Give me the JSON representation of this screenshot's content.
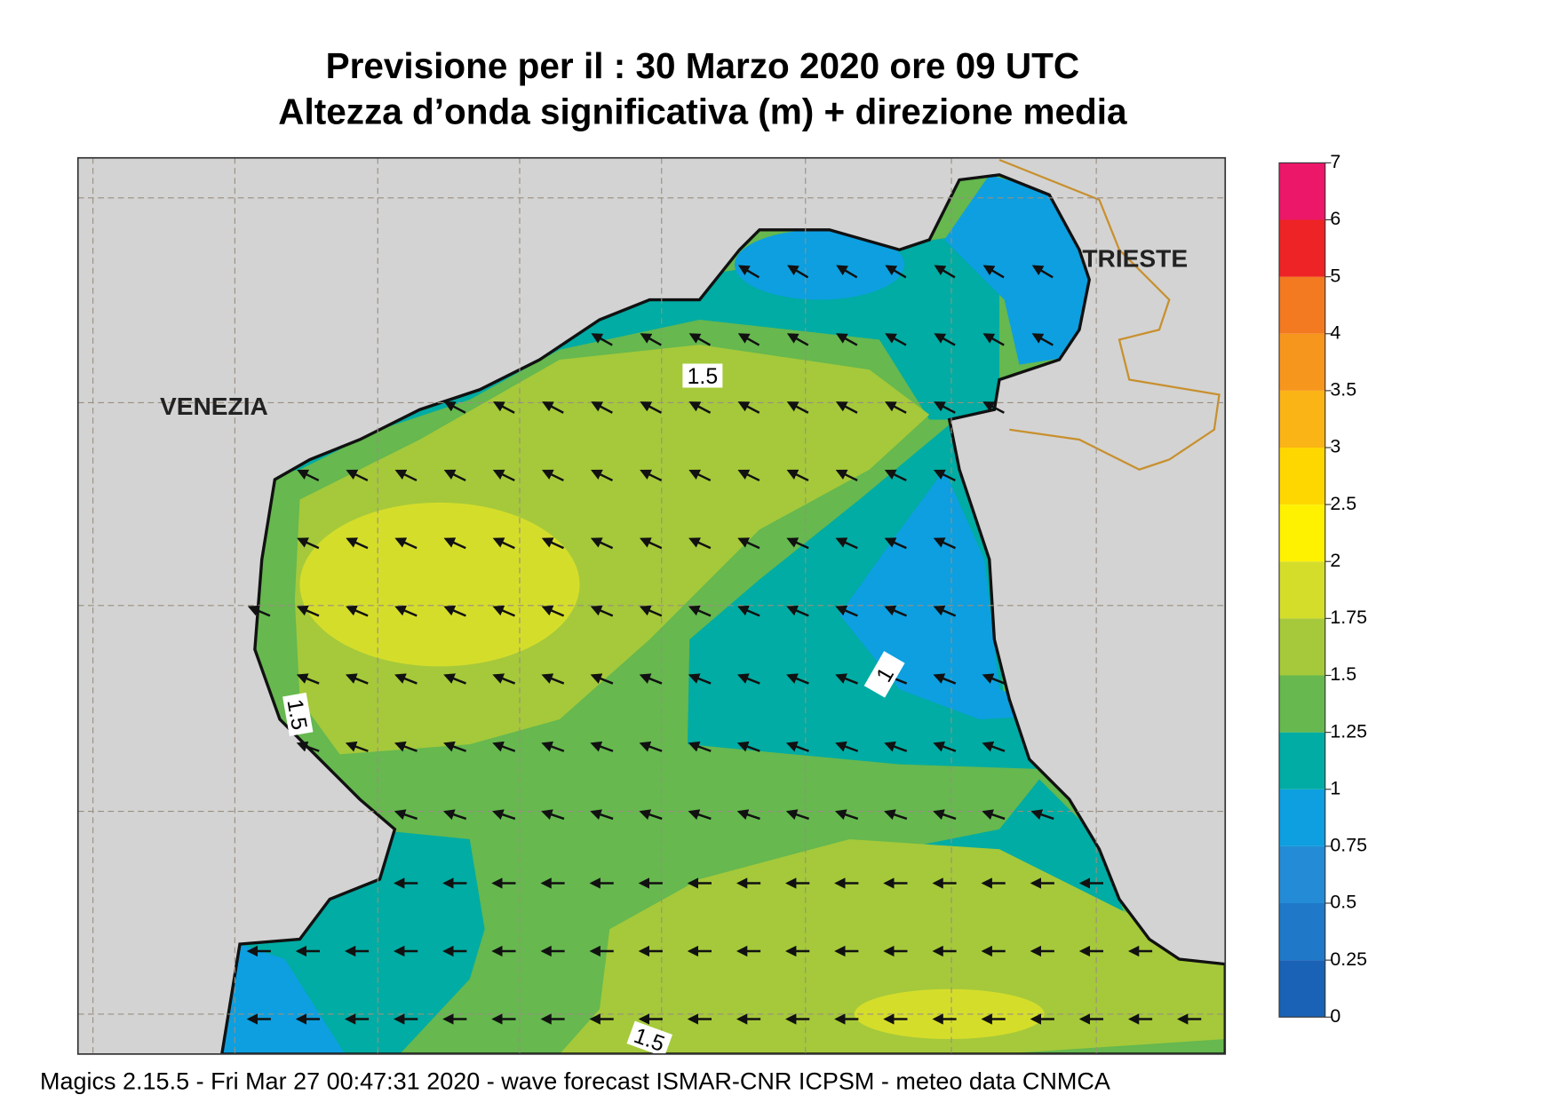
{
  "header": {
    "title": "Previsione per il  :  30   Marzo   2020   ore 09 UTC",
    "subtitle": "Altezza d’onda significativa (m) + direzione media"
  },
  "map": {
    "places": [
      "VENEZIA",
      "TRIESTE"
    ],
    "contour_labels": [
      1.5,
      1.5,
      1,
      1.5
    ]
  },
  "colorbar": {
    "levels": [
      0,
      0.25,
      0.5,
      0.75,
      1,
      1.25,
      1.5,
      1.75,
      2,
      2.5,
      3,
      3.5,
      4,
      5,
      6,
      7
    ],
    "colors": [
      "#1a62b5",
      "#1f79c8",
      "#248cd6",
      "#0d9fe0",
      "#00aca3",
      "#66b84f",
      "#a5c93a",
      "#d5dd2b",
      "#fff200",
      "#ffd700",
      "#fbb416",
      "#f7961d",
      "#f37a21",
      "#ee2326",
      "#ec1768"
    ]
  },
  "footer": "Magics 2.15.5 - Fri Mar 27 00:47:31 2020 - wave forecast  ISMAR-CNR  ICPSM - meteo data   CNMCA"
}
